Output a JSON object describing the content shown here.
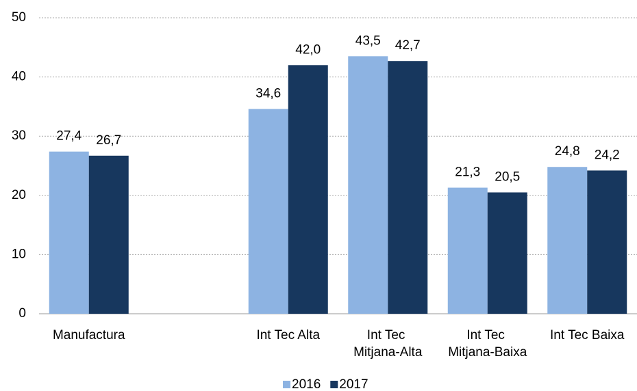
{
  "chart_data": {
    "type": "bar",
    "categories": [
      "Manufactura",
      null,
      "Int Tec Alta",
      "Int Tec Mitjana-Alta",
      "Int Tec Mitjana-Baixa",
      "Int Tec Baixa"
    ],
    "series": [
      {
        "name": "2016",
        "color": "#8db3e2",
        "values": [
          27.4,
          null,
          34.6,
          43.5,
          21.3,
          24.8
        ],
        "value_labels": [
          "27,4",
          null,
          "34,6",
          "43,5",
          "21,3",
          "24,8"
        ]
      },
      {
        "name": "2017",
        "color": "#17375e",
        "values": [
          26.7,
          null,
          42.0,
          42.7,
          20.5,
          24.2
        ],
        "value_labels": [
          "26,7",
          null,
          "42,0",
          "42,7",
          "20,5",
          "24,2"
        ]
      }
    ],
    "ylim": [
      0,
      50
    ],
    "yticks": [
      0,
      10,
      20,
      30,
      40,
      50
    ],
    "grid": true,
    "legend": "bottom"
  }
}
